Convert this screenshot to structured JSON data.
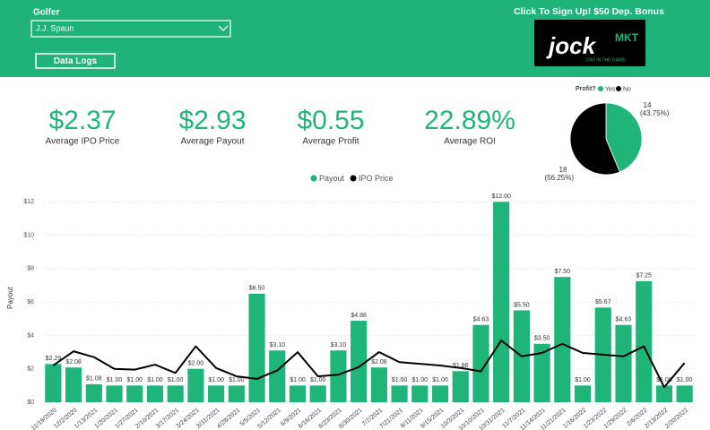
{
  "header": {
    "golfer_label": "Golfer",
    "golfer_value": "J.J. Spaun",
    "button": "Data Logs",
    "ad_text": "Click To Sign Up! $50 Dep. Bonus",
    "logo": "jock",
    "logo_badge": "MKT",
    "logo_tagline": "DAY IN THE GAME"
  },
  "kpis": [
    {
      "value": "$2.37",
      "label": "Average IPO Price"
    },
    {
      "value": "$2.93",
      "label": "Average Payout"
    },
    {
      "value": "$0.55",
      "label": "Average Profit"
    },
    {
      "value": "22.89%",
      "label": "Average ROI"
    }
  ],
  "chart_data": [
    {
      "type": "pie",
      "legend_title": "Profit?",
      "categories": [
        "Yes",
        "No"
      ],
      "values": [
        14,
        18
      ],
      "colors": [
        "#1fb57a",
        "#000000"
      ],
      "percents": [
        43.75,
        56.25
      ],
      "percent_labels": [
        "(43.75%)",
        "(56.25%)"
      ]
    },
    {
      "type": "bar_line",
      "ylabel": "Payout",
      "categories": [
        "11/19/2020",
        "12/2/2020",
        "1/13/2021",
        "1/20/2021",
        "1/27/2021",
        "2/10/2021",
        "3/17/2021",
        "3/24/2021",
        "3/31/2021",
        "4/28/2021",
        "5/5/2021",
        "5/12/2021",
        "6/9/2021",
        "6/16/2021",
        "6/23/2021",
        "6/30/2021",
        "7/7/2021",
        "7/21/2021",
        "8/11/2021",
        "9/15/2021",
        "10/3/2021",
        "10/10/2021",
        "10/31/2021",
        "11/7/2021",
        "11/14/2021",
        "11/21/2021",
        "1/16/2022",
        "1/23/2022",
        "1/29/2022",
        "2/6/2022",
        "2/13/2022",
        "2/20/2022"
      ],
      "series": [
        {
          "name": "Payout",
          "kind": "bar",
          "color": "#1fb57a",
          "values": [
            2.29,
            2.08,
            1.08,
            1.0,
            1.0,
            1.0,
            1.0,
            2.0,
            1.0,
            1.0,
            6.5,
            3.1,
            1.0,
            1.0,
            3.1,
            4.88,
            2.08,
            1.0,
            1.0,
            1.0,
            1.86,
            4.63,
            12.0,
            5.5,
            3.5,
            7.5,
            1.0,
            5.67,
            4.63,
            7.25,
            1.0,
            1.0
          ],
          "value_labels": [
            "$2.29",
            "$2.08",
            "$1.08",
            "$1.00",
            "$1.00",
            "$1.00",
            "$1.00",
            "$2.00",
            "$1.00",
            "$1.00",
            "$6.50",
            "$3.10",
            "$1.00",
            "$1.00",
            "$3.10",
            "$4.88",
            "$2.08",
            "$1.00",
            "$1.00",
            "$1.00",
            "$1.86",
            "$4.63",
            "$12.00",
            "$5.50",
            "$3.50",
            "$7.50",
            "$1.00",
            "$5.67",
            "$4.63",
            "$7.25",
            "$1.00",
            "$1.00"
          ]
        },
        {
          "name": "IPO Price",
          "kind": "line",
          "color": "#000000",
          "values": [
            2.2,
            3.05,
            2.7,
            2.0,
            1.95,
            2.25,
            1.75,
            3.35,
            2.05,
            1.55,
            1.4,
            1.9,
            3.0,
            1.55,
            1.65,
            2.1,
            3.0,
            2.4,
            2.3,
            2.2,
            2.05,
            1.85,
            3.7,
            2.75,
            2.95,
            3.5,
            2.95,
            2.85,
            2.75,
            3.35,
            0.9,
            2.35
          ]
        }
      ],
      "ylim": [
        0,
        12.5
      ],
      "yticks": [
        {
          "value": 0,
          "label": "$0"
        },
        {
          "value": 2,
          "label": "$2"
        },
        {
          "value": 4,
          "label": "$4"
        },
        {
          "value": 6,
          "label": "$6"
        },
        {
          "value": 8,
          "label": "$8"
        },
        {
          "value": 10,
          "label": "$10"
        },
        {
          "value": 12,
          "label": "$12"
        }
      ],
      "grid": true
    }
  ]
}
